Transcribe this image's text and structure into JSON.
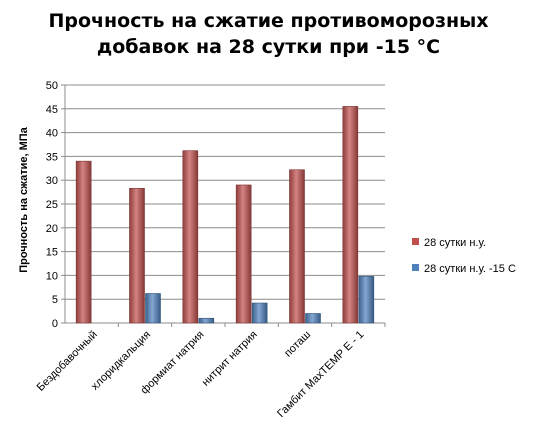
{
  "chart_data": {
    "type": "bar",
    "title_line1": "Прочность на сжатие  противоморозных",
    "title_line2": "добавок на 28 сутки при -15 °С",
    "ylabel": "Прочность на сжатие, МПа",
    "xlabel": "",
    "ylim": [
      0,
      50
    ],
    "yticks": [
      0,
      5,
      10,
      15,
      20,
      25,
      30,
      35,
      40,
      45,
      50
    ],
    "grid": true,
    "legend_position": "right",
    "categories": [
      "Бездобавочный",
      "хлоридкальция",
      "формиат натрия",
      "нитрит натрия",
      "поташ",
      "Гамбит МахТЕМР Е - 1"
    ],
    "series": [
      {
        "name": "28 сутки н.у.",
        "color": "#c0504d",
        "values": [
          34,
          28.3,
          36.2,
          29,
          32.2,
          45.5
        ]
      },
      {
        "name": "28 сутки н.у. -15 С",
        "color": "#4f81bd",
        "values": [
          0,
          6.2,
          1,
          4.2,
          2,
          9.8
        ]
      }
    ]
  }
}
